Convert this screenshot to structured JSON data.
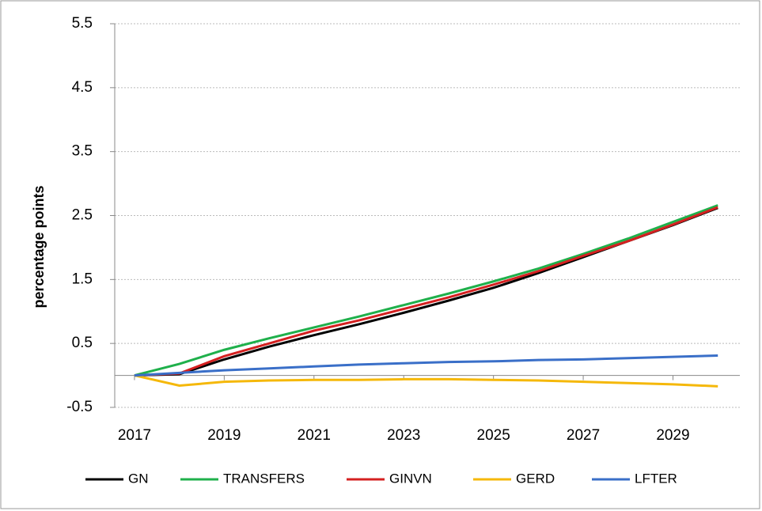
{
  "chart_data": {
    "type": "line",
    "y_label": "percentage points",
    "x": [
      2017,
      2018,
      2019,
      2020,
      2021,
      2022,
      2023,
      2024,
      2025,
      2026,
      2027,
      2028,
      2029,
      2030
    ],
    "series": [
      {
        "name": "GN",
        "color": "#000000",
        "values": [
          0,
          0.02,
          0.25,
          0.45,
          0.63,
          0.8,
          0.98,
          1.17,
          1.37,
          1.6,
          1.85,
          2.1,
          2.35,
          2.62
        ]
      },
      {
        "name": "TRANSFERS",
        "color": "#1fb04b",
        "values": [
          0,
          0.18,
          0.4,
          0.58,
          0.75,
          0.92,
          1.1,
          1.28,
          1.47,
          1.67,
          1.9,
          2.14,
          2.4,
          2.66
        ]
      },
      {
        "name": "GINVN",
        "color": "#d42020",
        "values": [
          0,
          0.03,
          0.3,
          0.5,
          0.7,
          0.86,
          1.04,
          1.22,
          1.42,
          1.63,
          1.87,
          2.1,
          2.36,
          2.63
        ]
      },
      {
        "name": "GERD",
        "color": "#f5b80a",
        "values": [
          0,
          -0.16,
          -0.1,
          -0.08,
          -0.07,
          -0.07,
          -0.06,
          -0.06,
          -0.07,
          -0.08,
          -0.1,
          -0.12,
          -0.14,
          -0.17
        ]
      },
      {
        "name": "LFTER",
        "color": "#3a6fc8",
        "values": [
          0,
          0.04,
          0.08,
          0.11,
          0.14,
          0.17,
          0.19,
          0.21,
          0.22,
          0.24,
          0.25,
          0.27,
          0.29,
          0.31
        ]
      }
    ],
    "xlim": [
      2016.56,
      2030.49
    ],
    "xticks": [
      2017,
      2019,
      2021,
      2023,
      2025,
      2027,
      2029
    ],
    "ylim": [
      -0.5,
      5.5
    ],
    "yticks": [
      -0.5,
      0.5,
      1.5,
      2.5,
      3.5,
      4.5,
      5.5
    ],
    "grid": true,
    "legend": "bottom"
  }
}
